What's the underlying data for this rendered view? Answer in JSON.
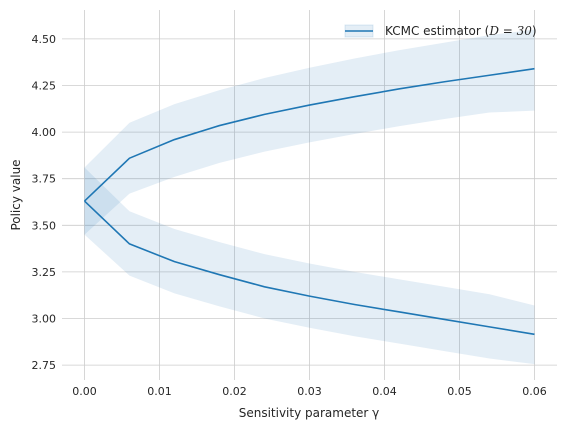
{
  "chart_data": {
    "type": "line",
    "xlabel": "Sensitivity parameter γ",
    "ylabel": "Policy value",
    "xlim": [
      -0.003,
      0.063
    ],
    "ylim": [
      2.67,
      4.655
    ],
    "x_ticks": [
      0.0,
      0.01,
      0.02,
      0.03,
      0.04,
      0.05,
      0.06
    ],
    "x_tick_labels": [
      "0.00",
      "0.01",
      "0.02",
      "0.03",
      "0.04",
      "0.05",
      "0.06"
    ],
    "y_ticks": [
      2.75,
      3.0,
      3.25,
      3.5,
      3.75,
      4.0,
      4.25,
      4.5
    ],
    "y_tick_labels": [
      "2.75",
      "3.00",
      "3.25",
      "3.50",
      "3.75",
      "4.00",
      "4.25",
      "4.50"
    ],
    "grid": true,
    "legend_position": "top-right",
    "legend_label": "KCMC estimator (",
    "legend_label_math": "D = 30",
    "legend_label_end": ")",
    "line_color": "#1f77b4",
    "band_color": "#1f77b4",
    "x": [
      0.0,
      0.006,
      0.012,
      0.018,
      0.024,
      0.03,
      0.036,
      0.042,
      0.048,
      0.054,
      0.06
    ],
    "series": [
      {
        "role": "upper",
        "values": [
          3.63,
          3.86,
          3.96,
          4.035,
          4.095,
          4.145,
          4.19,
          4.232,
          4.27,
          4.305,
          4.34
        ],
        "band_lower": [
          3.45,
          3.67,
          3.76,
          3.835,
          3.895,
          3.945,
          3.99,
          4.032,
          4.07,
          4.105,
          4.115
        ],
        "band_upper": [
          3.81,
          4.05,
          4.15,
          4.225,
          4.29,
          4.345,
          4.395,
          4.44,
          4.48,
          4.52,
          4.55
        ]
      },
      {
        "role": "lower",
        "values": [
          3.63,
          3.4,
          3.305,
          3.235,
          3.17,
          3.12,
          3.075,
          3.035,
          2.995,
          2.955,
          2.915
        ],
        "band_lower": [
          3.45,
          3.23,
          3.135,
          3.065,
          3.0,
          2.95,
          2.905,
          2.865,
          2.825,
          2.785,
          2.755
        ],
        "band_upper": [
          3.81,
          3.575,
          3.48,
          3.41,
          3.345,
          3.295,
          3.25,
          3.21,
          3.17,
          3.13,
          3.07
        ]
      }
    ]
  }
}
